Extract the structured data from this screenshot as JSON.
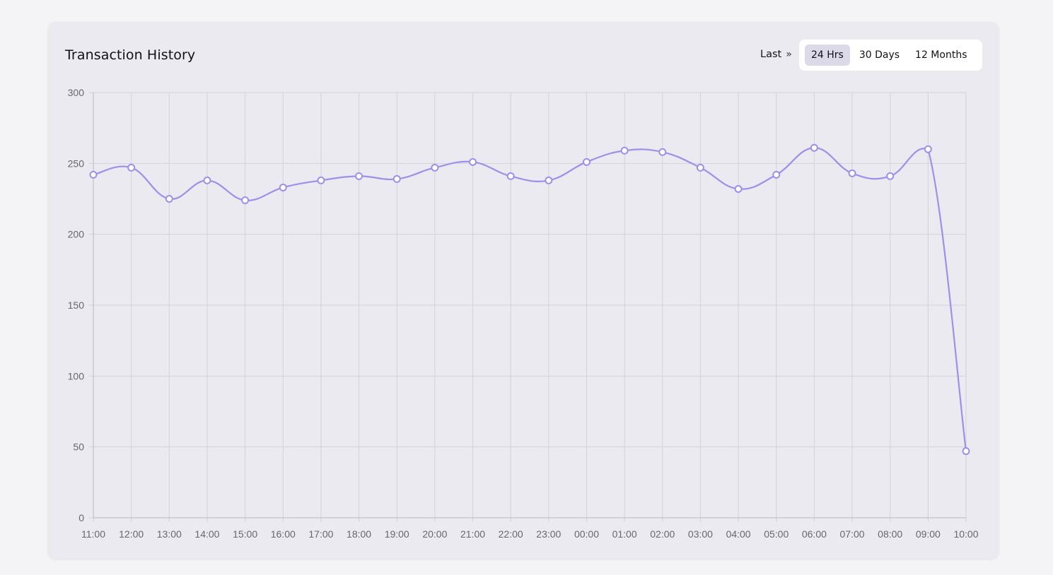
{
  "card": {
    "title": "Transaction History",
    "range_prefix": "Last",
    "range_options": [
      "24 Hrs",
      "30 Days",
      "12 Months"
    ],
    "active_range": 0
  },
  "chart_data": {
    "type": "line",
    "x": [
      "11:00",
      "12:00",
      "13:00",
      "14:00",
      "15:00",
      "16:00",
      "17:00",
      "18:00",
      "19:00",
      "20:00",
      "21:00",
      "22:00",
      "23:00",
      "00:00",
      "01:00",
      "02:00",
      "03:00",
      "04:00",
      "05:00",
      "06:00",
      "07:00",
      "08:00",
      "09:00",
      "10:00"
    ],
    "series": [
      {
        "values": [
          242,
          247,
          225,
          238,
          224,
          233,
          238,
          241,
          239,
          247,
          251,
          241,
          238,
          251,
          259,
          258,
          247,
          232,
          242,
          261,
          243,
          241,
          260,
          47
        ],
        "color": "#9b91ea"
      }
    ],
    "ylim": [
      0,
      300
    ],
    "yticks": [
      0,
      50,
      100,
      150,
      200,
      250,
      300
    ],
    "grid": true,
    "title": "",
    "xlabel": "",
    "ylabel": ""
  }
}
